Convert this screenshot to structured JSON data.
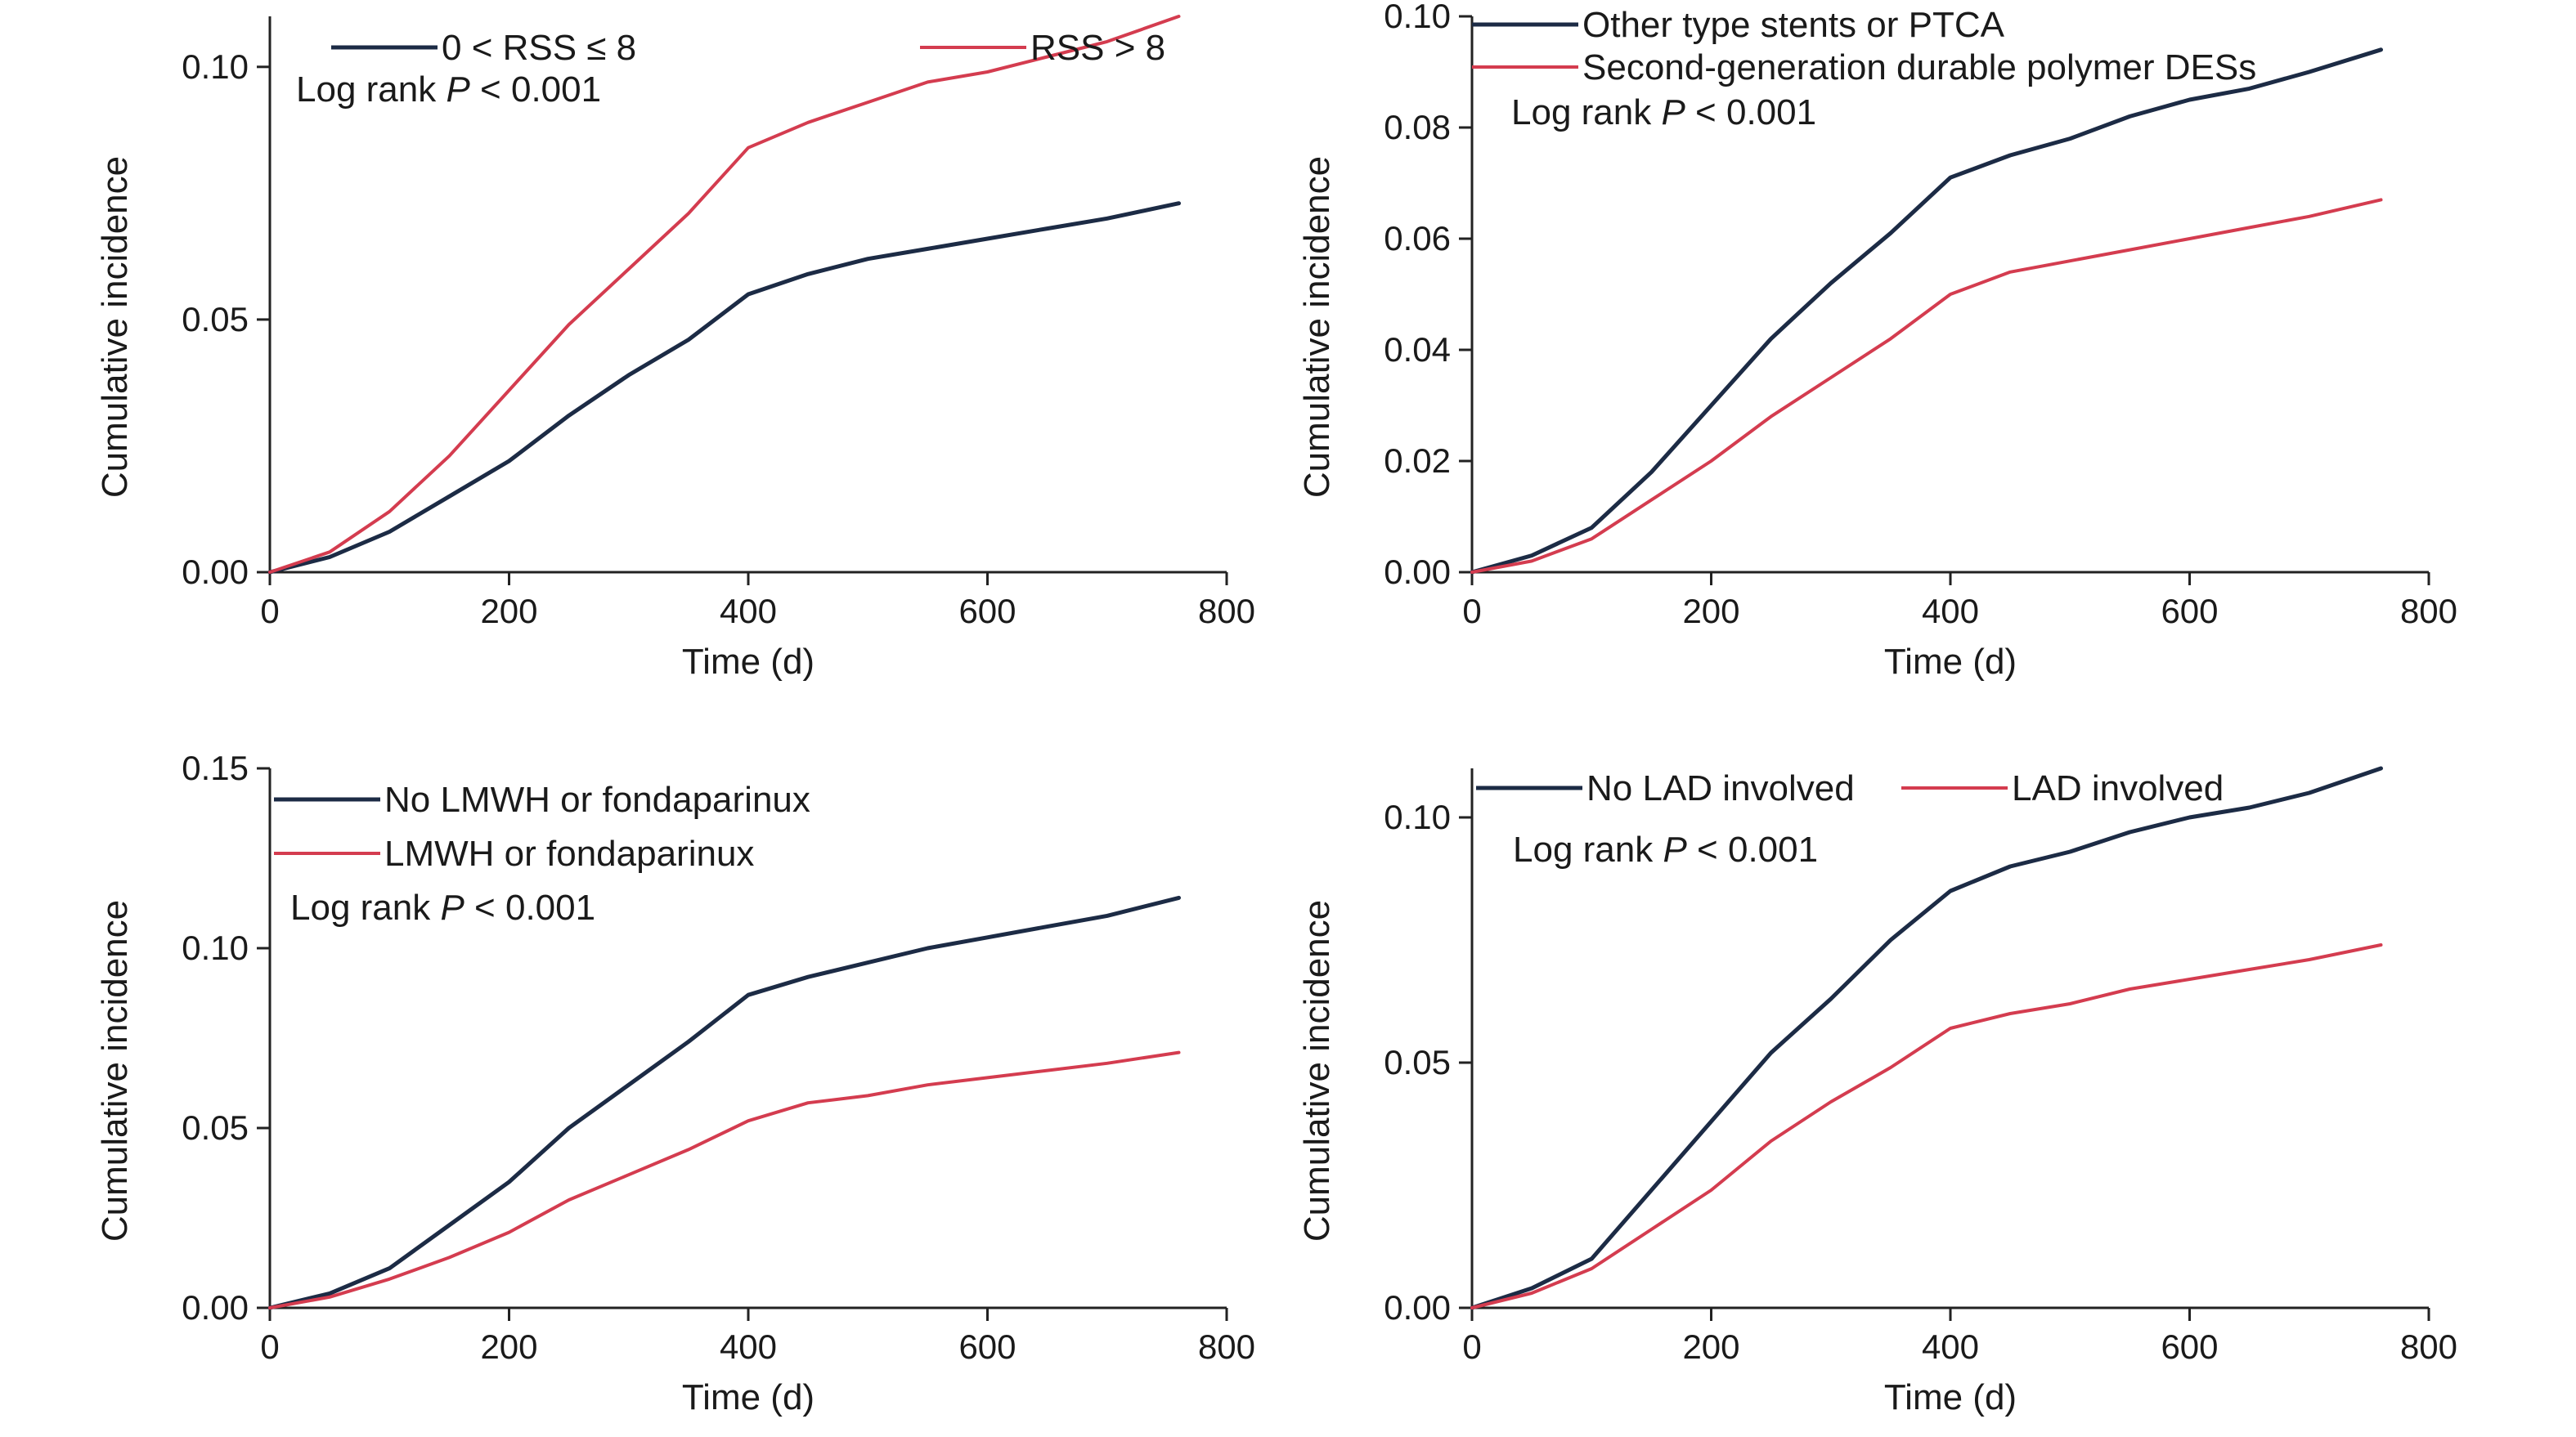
{
  "chart_data": [
    {
      "type": "line",
      "xlabel": "Time (d)",
      "ylabel": "Cumulative incidence",
      "xlim": [
        0,
        800
      ],
      "ylim": [
        0,
        0.11
      ],
      "xticks": [
        "0",
        "200",
        "400",
        "600",
        "800"
      ],
      "yticks": [
        "0.00",
        "0.05",
        "0.10"
      ],
      "annotation": {
        "prefix": "Log rank ",
        "italic": "P",
        "suffix": " < 0.001"
      },
      "legend_layout": "row",
      "series": [
        {
          "name": "0 < RSS ≤ 8",
          "color": "#1c2b45",
          "x": [
            0,
            50,
            100,
            150,
            200,
            250,
            300,
            350,
            400,
            450,
            500,
            550,
            600,
            650,
            700,
            760
          ],
          "y": [
            0,
            0.003,
            0.008,
            0.015,
            0.022,
            0.031,
            0.039,
            0.046,
            0.055,
            0.059,
            0.062,
            0.064,
            0.066,
            0.068,
            0.07,
            0.073
          ]
        },
        {
          "name": "RSS > 8",
          "color": "#d43c4f",
          "x": [
            0,
            50,
            100,
            150,
            200,
            250,
            300,
            350,
            400,
            450,
            500,
            550,
            600,
            650,
            700,
            760
          ],
          "y": [
            0,
            0.004,
            0.012,
            0.023,
            0.036,
            0.049,
            0.06,
            0.071,
            0.084,
            0.089,
            0.093,
            0.097,
            0.099,
            0.102,
            0.105,
            0.11
          ]
        }
      ]
    },
    {
      "type": "line",
      "xlabel": "Time (d)",
      "ylabel": "Cumulative incidence",
      "xlim": [
        0,
        800
      ],
      "ylim": [
        0,
        0.1
      ],
      "xticks": [
        "0",
        "200",
        "400",
        "600",
        "800"
      ],
      "yticks": [
        "0.00",
        "0.02",
        "0.04",
        "0.06",
        "0.08",
        "0.10"
      ],
      "annotation": {
        "prefix": "Log rank ",
        "italic": "P",
        "suffix": " < 0.001"
      },
      "legend_layout": "column",
      "series": [
        {
          "name": "Other type stents or PTCA",
          "color": "#1c2b45",
          "x": [
            0,
            50,
            100,
            150,
            200,
            250,
            300,
            350,
            400,
            450,
            500,
            550,
            600,
            650,
            700,
            760
          ],
          "y": [
            0,
            0.003,
            0.008,
            0.018,
            0.03,
            0.042,
            0.052,
            0.061,
            0.071,
            0.075,
            0.078,
            0.082,
            0.085,
            0.087,
            0.09,
            0.094
          ]
        },
        {
          "name": "Second-generation durable polymer DESs",
          "color": "#d43c4f",
          "x": [
            0,
            50,
            100,
            150,
            200,
            250,
            300,
            350,
            400,
            450,
            500,
            550,
            600,
            650,
            700,
            760
          ],
          "y": [
            0,
            0.002,
            0.006,
            0.013,
            0.02,
            0.028,
            0.035,
            0.042,
            0.05,
            0.054,
            0.056,
            0.058,
            0.06,
            0.062,
            0.064,
            0.067
          ]
        }
      ]
    },
    {
      "type": "line",
      "xlabel": "Time (d)",
      "ylabel": "Cumulative incidence",
      "xlim": [
        0,
        800
      ],
      "ylim": [
        0,
        0.15
      ],
      "xticks": [
        "0",
        "200",
        "400",
        "600",
        "800"
      ],
      "yticks": [
        "0.00",
        "0.05",
        "0.10",
        "0.15"
      ],
      "annotation": {
        "prefix": "Log rank ",
        "italic": "P",
        "suffix": " < 0.001"
      },
      "legend_layout": "column",
      "series": [
        {
          "name": "No LMWH or fondaparinux",
          "color": "#1c2b45",
          "x": [
            0,
            50,
            100,
            150,
            200,
            250,
            300,
            350,
            400,
            450,
            500,
            550,
            600,
            650,
            700,
            760
          ],
          "y": [
            0,
            0.004,
            0.011,
            0.023,
            0.035,
            0.05,
            0.062,
            0.074,
            0.087,
            0.092,
            0.096,
            0.1,
            0.103,
            0.106,
            0.109,
            0.114
          ]
        },
        {
          "name": "LMWH or fondaparinux",
          "color": "#d43c4f",
          "x": [
            0,
            50,
            100,
            150,
            200,
            250,
            300,
            350,
            400,
            450,
            500,
            550,
            600,
            650,
            700,
            760
          ],
          "y": [
            0,
            0.003,
            0.008,
            0.014,
            0.021,
            0.03,
            0.037,
            0.044,
            0.052,
            0.057,
            0.059,
            0.062,
            0.064,
            0.066,
            0.068,
            0.071
          ]
        }
      ]
    },
    {
      "type": "line",
      "xlabel": "Time (d)",
      "ylabel": "Cumulative incidence",
      "xlim": [
        0,
        800
      ],
      "ylim": [
        0,
        0.11
      ],
      "xticks": [
        "0",
        "200",
        "400",
        "600",
        "800"
      ],
      "yticks": [
        "0.00",
        "0.05",
        "0.10"
      ],
      "annotation": {
        "prefix": "Log rank ",
        "italic": "P",
        "suffix": " < 0.001"
      },
      "legend_layout": "row",
      "series": [
        {
          "name": "No LAD involved",
          "color": "#1c2b45",
          "x": [
            0,
            50,
            100,
            150,
            200,
            250,
            300,
            350,
            400,
            450,
            500,
            550,
            600,
            650,
            700,
            760
          ],
          "y": [
            0,
            0.004,
            0.01,
            0.024,
            0.038,
            0.052,
            0.063,
            0.075,
            0.085,
            0.09,
            0.093,
            0.097,
            0.1,
            0.102,
            0.105,
            0.11
          ]
        },
        {
          "name": "LAD involved",
          "color": "#d43c4f",
          "x": [
            0,
            50,
            100,
            150,
            200,
            250,
            300,
            350,
            400,
            450,
            500,
            550,
            600,
            650,
            700,
            760
          ],
          "y": [
            0,
            0.003,
            0.008,
            0.016,
            0.024,
            0.034,
            0.042,
            0.049,
            0.057,
            0.06,
            0.062,
            0.065,
            0.067,
            0.069,
            0.071,
            0.074
          ]
        }
      ]
    }
  ]
}
